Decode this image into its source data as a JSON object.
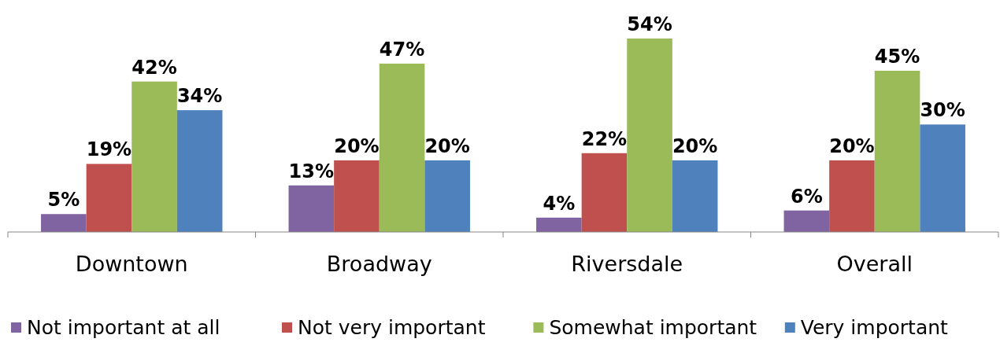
{
  "chart_data": {
    "type": "bar",
    "categories": [
      "Downtown",
      "Broadway",
      "Riversdale",
      "Overall"
    ],
    "series": [
      {
        "name": "Not important at all",
        "color": "#8064a2",
        "values": [
          5,
          13,
          4,
          6
        ],
        "value_labels": [
          "5%",
          "13%",
          "4%",
          "6%"
        ]
      },
      {
        "name": "Not very important",
        "color": "#c0504d",
        "values": [
          19,
          20,
          22,
          20
        ],
        "value_labels": [
          "19%",
          "20%",
          "22%",
          "20%"
        ]
      },
      {
        "name": "Somewhat important",
        "color": "#9bbb59",
        "values": [
          42,
          47,
          54,
          45
        ],
        "value_labels": [
          "42%",
          "47%",
          "54%",
          "45%"
        ]
      },
      {
        "name": "Very important",
        "color": "#4f81bd",
        "values": [
          34,
          20,
          20,
          30
        ],
        "value_labels": [
          "34%",
          "20%",
          "20%",
          "30%"
        ]
      }
    ],
    "legend": "bottom"
  }
}
